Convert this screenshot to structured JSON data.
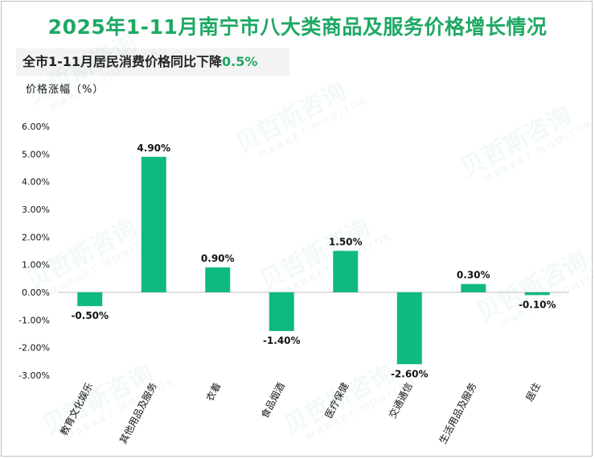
{
  "title": "2025年1-11月南宁市八大类商品及服务价格增长情况",
  "subtitle": {
    "text": "全市1-11月居民消费价格同比下降",
    "highlight": "0.5%"
  },
  "watermark": {
    "brand": "贝哲斯咨询",
    "english": "MARKET MONITOR"
  },
  "colors": {
    "bar": "#10b981",
    "title": "#1ea864"
  },
  "chart_data": {
    "type": "bar",
    "ylabel": "价格涨幅（%）",
    "ylim": [
      -3,
      6
    ],
    "yticks": [
      6,
      5,
      4,
      3,
      2,
      1,
      0,
      -1,
      -2,
      -3
    ],
    "ytick_labels": [
      "6.00%",
      "5.00%",
      "4.00%",
      "3.00%",
      "2.00%",
      "1.00%",
      "0.00%",
      "-1.00%",
      "-2.00%",
      "-3.00%"
    ],
    "categories": [
      "教育文化娱乐",
      "其他用品及服务",
      "衣着",
      "食品烟酒",
      "医疗保健",
      "交通通信",
      "生活用品及服务",
      "居住"
    ],
    "values": [
      -0.5,
      4.9,
      0.9,
      -1.4,
      1.5,
      -2.6,
      0.3,
      -0.1
    ],
    "value_labels": [
      "-0.50%",
      "4.90%",
      "0.90%",
      "-1.40%",
      "1.50%",
      "-2.60%",
      "0.30%",
      "-0.10%"
    ]
  }
}
